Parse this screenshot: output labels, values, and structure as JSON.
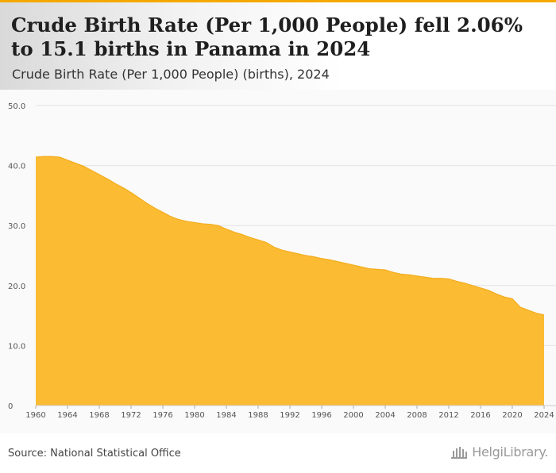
{
  "header": {
    "title": "Crude Birth Rate (Per 1,000 People) fell 2.06% to 15.1 births in Panama in 2024",
    "subtitle": "Crude Birth Rate (Per 1,000 People) (births), 2024"
  },
  "footer": {
    "source": "Source: National Statistical Office",
    "logo_text": "HelgiLibrary."
  },
  "colors": {
    "accent": "#f5a800",
    "area": "#fbbb33"
  },
  "chart_data": {
    "type": "area",
    "title": "",
    "xlabel": "",
    "ylabel": "",
    "x": [
      1960,
      1961,
      1962,
      1963,
      1964,
      1965,
      1966,
      1967,
      1968,
      1969,
      1970,
      1971,
      1972,
      1973,
      1974,
      1975,
      1976,
      1977,
      1978,
      1979,
      1980,
      1981,
      1982,
      1983,
      1984,
      1985,
      1986,
      1987,
      1988,
      1989,
      1990,
      1991,
      1992,
      1993,
      1994,
      1995,
      1996,
      1997,
      1998,
      1999,
      2000,
      2001,
      2002,
      2003,
      2004,
      2005,
      2006,
      2007,
      2008,
      2009,
      2010,
      2011,
      2012,
      2013,
      2014,
      2015,
      2016,
      2017,
      2018,
      2019,
      2020,
      2021,
      2022,
      2023,
      2024
    ],
    "values": [
      41.4,
      41.5,
      41.5,
      41.4,
      40.9,
      40.4,
      39.9,
      39.2,
      38.5,
      37.8,
      37.0,
      36.3,
      35.5,
      34.6,
      33.7,
      32.9,
      32.2,
      31.5,
      31.0,
      30.7,
      30.5,
      30.3,
      30.2,
      30.0,
      29.4,
      28.9,
      28.5,
      28.0,
      27.6,
      27.2,
      26.4,
      25.9,
      25.6,
      25.3,
      25.0,
      24.8,
      24.5,
      24.3,
      24.0,
      23.7,
      23.4,
      23.1,
      22.8,
      22.7,
      22.6,
      22.2,
      21.9,
      21.8,
      21.6,
      21.4,
      21.2,
      21.2,
      21.1,
      20.7,
      20.4,
      20.0,
      19.6,
      19.2,
      18.6,
      18.1,
      17.8,
      16.4,
      15.9,
      15.4,
      15.1
    ],
    "x_ticks": [
      "1960",
      "1964",
      "1968",
      "1972",
      "1976",
      "1980",
      "1984",
      "1988",
      "1992",
      "1996",
      "2000",
      "2004",
      "2008",
      "2012",
      "2016",
      "2020",
      "2024"
    ],
    "y_ticks": [
      "0",
      "10.0",
      "20.0",
      "30.0",
      "40.0",
      "50.0"
    ],
    "xlim": [
      1960,
      2024
    ],
    "ylim": [
      0,
      50
    ],
    "grid": true,
    "legend": "none"
  }
}
